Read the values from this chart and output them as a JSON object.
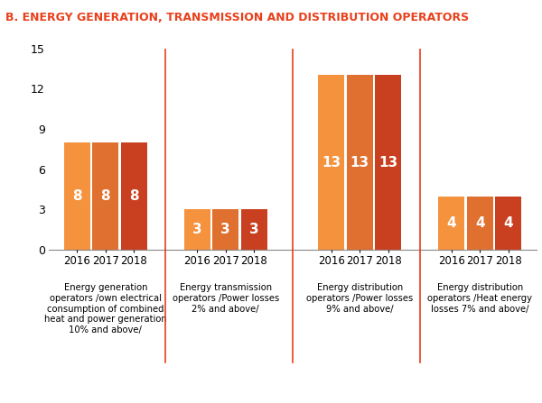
{
  "title": "B. ENERGY GENERATION, TRANSMISSION AND DISTRIBUTION OPERATORS",
  "title_color": "#e8401c",
  "groups": [
    {
      "label": "Energy generation\noperators /own electrical\nconsumption of combined\nheat and power generation\n10% and above/",
      "values": [
        8,
        8,
        8
      ],
      "years": [
        "2016",
        "2017",
        "2018"
      ],
      "colors": [
        "#f5923e",
        "#e07030",
        "#c94020"
      ]
    },
    {
      "label": "Energy transmission\noperators /Power losses\n2% and above/",
      "values": [
        3,
        3,
        3
      ],
      "years": [
        "2016",
        "2017",
        "2018"
      ],
      "colors": [
        "#f5923e",
        "#e07030",
        "#c94020"
      ]
    },
    {
      "label": "Energy distribution\noperators /Power losses\n9% and above/",
      "values": [
        13,
        13,
        13
      ],
      "years": [
        "2016",
        "2017",
        "2018"
      ],
      "colors": [
        "#f5923e",
        "#e07030",
        "#c94020"
      ]
    },
    {
      "label": "Energy distribution\noperators /Heat energy\nlosses 7% and above/",
      "values": [
        4,
        4,
        4
      ],
      "years": [
        "2016",
        "2017",
        "2018"
      ],
      "colors": [
        "#f5923e",
        "#e07030",
        "#c94020"
      ]
    }
  ],
  "ylim": [
    0,
    15
  ],
  "yticks": [
    0,
    3,
    6,
    9,
    12,
    15
  ],
  "bar_width": 0.22,
  "label_fontsize": 7.2,
  "value_fontsize": 11,
  "year_fontsize": 8.5,
  "title_fontsize": 9,
  "separator_color": "#e8401c",
  "background_color": "#ffffff"
}
